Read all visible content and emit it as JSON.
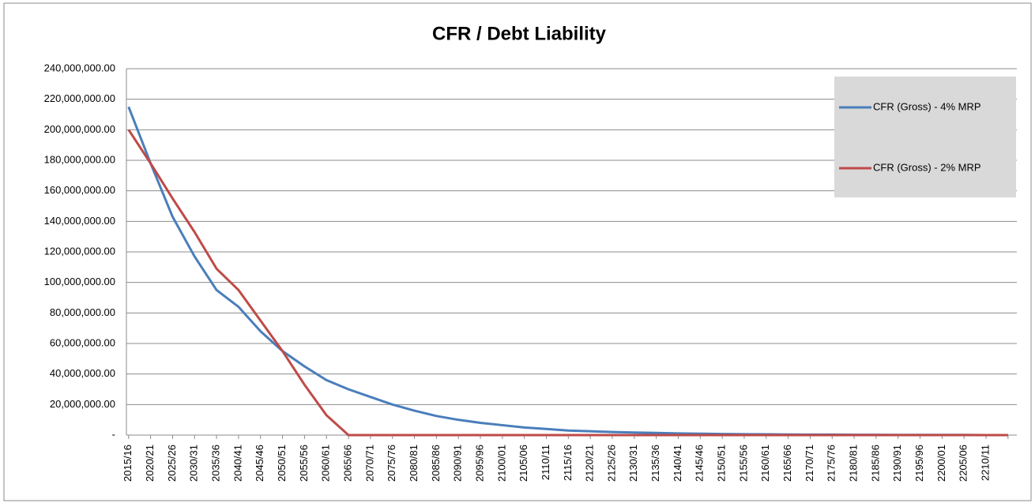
{
  "chart_data": {
    "type": "line",
    "title": "CFR / Debt Liability",
    "categories": [
      "2015/16",
      "2020/21",
      "2025/26",
      "2030/31",
      "2035/36",
      "2040/41",
      "2045/46",
      "2050/51",
      "2055/56",
      "2060/61",
      "2065/66",
      "2070/71",
      "2075/76",
      "2080/81",
      "2085/86",
      "2090/91",
      "2095/96",
      "2100/01",
      "2105/06",
      "2110/11",
      "2115/16",
      "2120/21",
      "2125/26",
      "2130/31",
      "2135/36",
      "2140/41",
      "2145/46",
      "2150/51",
      "2155/56",
      "2160/61",
      "2165/66",
      "2170/71",
      "2175/76",
      "2180/81",
      "2185/86",
      "2190/91",
      "2195/96",
      "2200/01",
      "2205/06",
      "2210/11",
      null
    ],
    "series": [
      {
        "name": "CFR (Gross) - 4% MRP",
        "color": "#4a7ebb",
        "values": [
          215000000,
          178000000,
          143000000,
          117000000,
          95000000,
          84000000,
          68000000,
          55000000,
          45000000,
          36000000,
          30000000,
          25000000,
          20000000,
          16000000,
          12500000,
          10000000,
          8000000,
          6500000,
          5000000,
          4000000,
          3000000,
          2500000,
          2000000,
          1700000,
          1400000,
          1100000,
          900000,
          700000,
          600000,
          500000,
          400000,
          300000,
          300000,
          200000,
          200000,
          100000,
          100000,
          100000,
          100000,
          0,
          0
        ]
      },
      {
        "name": "CFR (Gross) - 2% MRP",
        "color": "#be4b48",
        "values": [
          200000000,
          178000000,
          155000000,
          133000000,
          109000000,
          95000000,
          75000000,
          55000000,
          33000000,
          13000000,
          0,
          0,
          0,
          0,
          0,
          0,
          0,
          0,
          0,
          0,
          0,
          0,
          0,
          0,
          0,
          0,
          0,
          0,
          0,
          0,
          0,
          0,
          0,
          0,
          0,
          0,
          0,
          0,
          0,
          0,
          0
        ]
      }
    ],
    "ylim": [
      0,
      240000000
    ],
    "yticks": [
      {
        "value": 0,
        "label": "-"
      },
      {
        "value": 20000000,
        "label": "20,000,000.00"
      },
      {
        "value": 40000000,
        "label": "40,000,000.00"
      },
      {
        "value": 60000000,
        "label": "60,000,000.00"
      },
      {
        "value": 80000000,
        "label": "80,000,000.00"
      },
      {
        "value": 100000000,
        "label": "100,000,000.00"
      },
      {
        "value": 120000000,
        "label": "120,000,000.00"
      },
      {
        "value": 140000000,
        "label": "140,000,000.00"
      },
      {
        "value": 160000000,
        "label": "160,000,000.00"
      },
      {
        "value": 180000000,
        "label": "180,000,000.00"
      },
      {
        "value": 200000000,
        "label": "200,000,000.00"
      },
      {
        "value": 220000000,
        "label": "220,000,000.00"
      },
      {
        "value": 240000000,
        "label": "240,000,000.00"
      }
    ],
    "grid": true,
    "legend": "top-right"
  }
}
